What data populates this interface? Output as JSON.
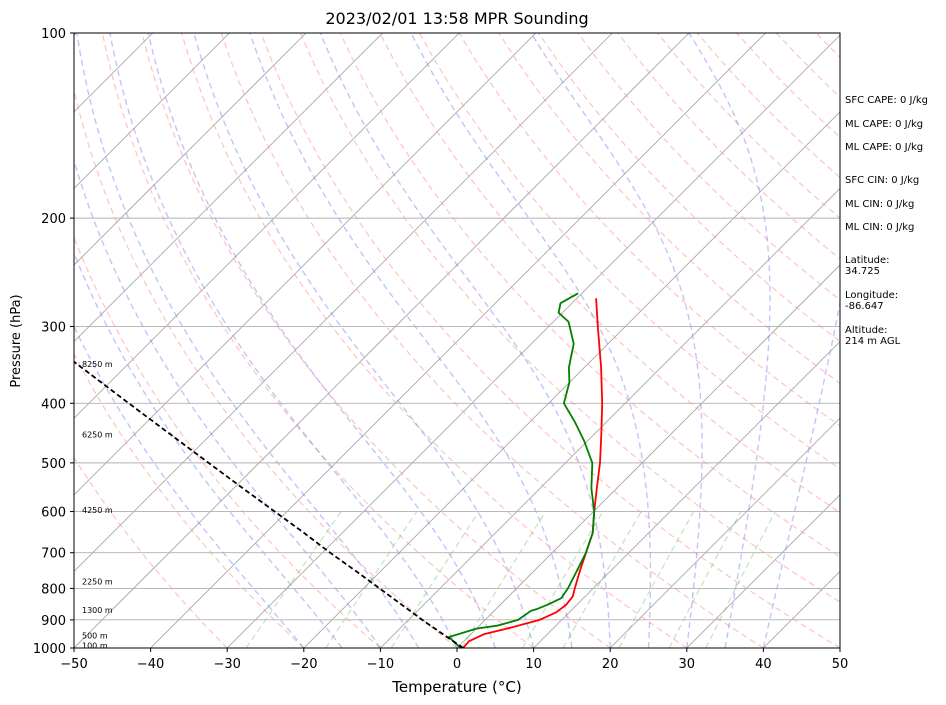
{
  "chart_data": {
    "type": "line",
    "title": "2023/02/01 13:58 MPR Sounding",
    "xlabel": "Temperature (°C)",
    "ylabel": "Pressure (hPa)",
    "xlim": [
      -50,
      50
    ],
    "ylim": [
      1000,
      100
    ],
    "y_scale": "log",
    "x_ticks": [
      -50,
      -40,
      -30,
      -20,
      -10,
      0,
      10,
      20,
      30,
      40,
      50
    ],
    "y_ticks": [
      100,
      200,
      300,
      400,
      500,
      600,
      700,
      800,
      900,
      1000
    ],
    "grid": "horizontal at pressure ticks",
    "height_labels": [
      {
        "text": "100 m",
        "p": 990
      },
      {
        "text": "500 m",
        "p": 955
      },
      {
        "text": "1300 m",
        "p": 868
      },
      {
        "text": "2250 m",
        "p": 780
      },
      {
        "text": "4250 m",
        "p": 597
      },
      {
        "text": "6250 m",
        "p": 450
      },
      {
        "text": "8250 m",
        "p": 345
      }
    ],
    "series": [
      {
        "key": "temperature",
        "color": "#ff0000",
        "points": [
          {
            "t": 0.8,
            "p": 1000
          },
          {
            "t": 0.7,
            "p": 975
          },
          {
            "t": 1.7,
            "p": 950
          },
          {
            "t": 4.5,
            "p": 925
          },
          {
            "t": 7.1,
            "p": 900
          },
          {
            "t": 8.3,
            "p": 875
          },
          {
            "t": 8.6,
            "p": 850
          },
          {
            "t": 8.4,
            "p": 825
          },
          {
            "t": 7.6,
            "p": 800
          },
          {
            "t": 6.0,
            "p": 750
          },
          {
            "t": 4.4,
            "p": 700
          },
          {
            "t": 2.7,
            "p": 650
          },
          {
            "t": 0.1,
            "p": 600
          },
          {
            "t": -2.6,
            "p": 550
          },
          {
            "t": -5.5,
            "p": 500
          },
          {
            "t": -9.0,
            "p": 450
          },
          {
            "t": -13.0,
            "p": 400
          },
          {
            "t": -17.8,
            "p": 350
          },
          {
            "t": -23.6,
            "p": 300
          },
          {
            "t": -27.5,
            "p": 270
          }
        ]
      },
      {
        "key": "dewpoint",
        "color": "#008000",
        "points": [
          {
            "t": 0.5,
            "p": 1000
          },
          {
            "t": -2.5,
            "p": 960
          },
          {
            "t": 0.0,
            "p": 930
          },
          {
            "t": 2.3,
            "p": 920
          },
          {
            "t": 4.3,
            "p": 900
          },
          {
            "t": 4.8,
            "p": 870
          },
          {
            "t": 5.3,
            "p": 865
          },
          {
            "t": 6.2,
            "p": 850
          },
          {
            "t": 7.1,
            "p": 830
          },
          {
            "t": 6.7,
            "p": 800
          },
          {
            "t": 5.6,
            "p": 750
          },
          {
            "t": 4.4,
            "p": 700
          },
          {
            "t": 2.7,
            "p": 650
          },
          {
            "t": 0.1,
            "p": 600
          },
          {
            "t": -3.3,
            "p": 550
          },
          {
            "t": -6.5,
            "p": 500
          },
          {
            "t": -10.5,
            "p": 460
          },
          {
            "t": -14.0,
            "p": 430
          },
          {
            "t": -18.0,
            "p": 400
          },
          {
            "t": -20.0,
            "p": 370
          },
          {
            "t": -22.0,
            "p": 350
          },
          {
            "t": -24.5,
            "p": 320
          },
          {
            "t": -28.0,
            "p": 295
          },
          {
            "t": -30.5,
            "p": 285
          },
          {
            "t": -31.5,
            "p": 275
          },
          {
            "t": -30.5,
            "p": 265
          }
        ]
      },
      {
        "key": "parcel",
        "color": "#000000",
        "style": "dashed",
        "points": [
          {
            "t": 0.8,
            "p": 1000
          },
          {
            "t": -3.6,
            "p": 950
          },
          {
            "t": -8.2,
            "p": 900
          },
          {
            "t": -12.9,
            "p": 850
          },
          {
            "t": -17.9,
            "p": 800
          },
          {
            "t": -23.2,
            "p": 750
          },
          {
            "t": -29.0,
            "p": 700
          },
          {
            "t": -35.0,
            "p": 650
          },
          {
            "t": -41.6,
            "p": 600
          },
          {
            "t": -48.8,
            "p": 550
          },
          {
            "t": -56.6,
            "p": 500
          },
          {
            "t": -65.2,
            "p": 450
          },
          {
            "t": -74.8,
            "p": 400
          },
          {
            "t": -85.6,
            "p": 350
          },
          {
            "t": -98.1,
            "p": 300
          },
          {
            "t": -106.0,
            "p": 272
          }
        ]
      }
    ]
  },
  "stats": [
    {
      "label": "SFC CAPE: 0 J/kg"
    },
    {
      "label": "ML CAPE: 0 J/kg"
    },
    {
      "label": "ML CAPE: 0 J/kg"
    },
    {
      "label": "SFC CIN: 0 J/kg"
    },
    {
      "label": "ML CIN: 0 J/kg"
    },
    {
      "label": "ML CIN: 0 J/kg"
    }
  ],
  "location": {
    "latitude": "Latitude:\n34.725",
    "longitude": "Longitude:\n-86.647",
    "altitude": "Altitude:\n214 m AGL"
  }
}
